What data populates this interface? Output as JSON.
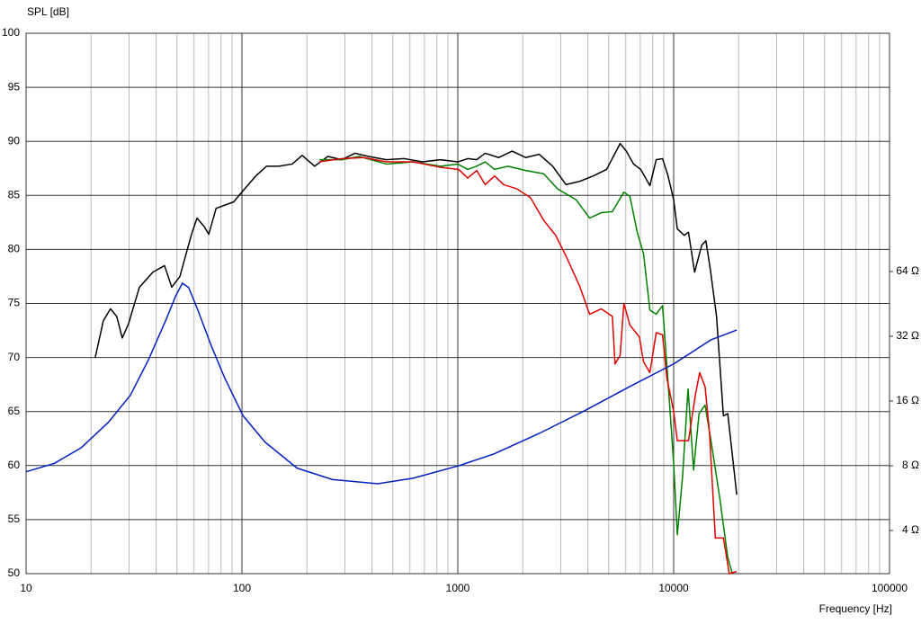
{
  "chart_data": {
    "type": "line",
    "y_label": "SPL [dB]",
    "x_label": "Frequency [Hz]",
    "xscale": "log",
    "y2scale": "log",
    "grid": true,
    "xlim": [
      10,
      100000
    ],
    "xticks": [
      10,
      100,
      1000,
      10000,
      100000
    ],
    "x_minor_ticks": [
      20,
      30,
      40,
      50,
      60,
      70,
      80,
      90,
      200,
      300,
      400,
      500,
      600,
      700,
      800,
      900,
      2000,
      3000,
      4000,
      5000,
      6000,
      7000,
      8000,
      9000,
      20000,
      30000,
      40000,
      50000,
      60000,
      70000,
      80000,
      90000
    ],
    "ylim": [
      50,
      100
    ],
    "yticks": [
      50,
      55,
      60,
      65,
      70,
      75,
      80,
      85,
      90,
      95,
      100
    ],
    "y2lim": [
      2.52,
      820
    ],
    "y2ticks": [
      {
        "value": 4,
        "label": "4 Ω"
      },
      {
        "value": 8,
        "label": "8 Ω"
      },
      {
        "value": 16,
        "label": "16 Ω"
      },
      {
        "value": 32,
        "label": "32 Ω"
      },
      {
        "value": 64,
        "label": "64 Ω"
      }
    ],
    "series": [
      {
        "color": "#000000",
        "x": [
          20.9,
          22.8,
          24.6,
          26.3,
          27.9,
          29.8,
          33.5,
          38.7,
          43.8,
          47.3,
          51.6,
          54.1,
          58.4,
          61.9,
          66.9,
          70.2,
          75.9,
          80.9,
          91.6,
          100.9,
          116,
          130,
          148,
          171,
          190,
          217,
          250,
          290,
          334,
          386,
          467,
          565,
          686,
          831,
          1000,
          1111,
          1223,
          1339,
          1547,
          1786,
          2063,
          2380,
          2750,
          3170,
          3670,
          4240,
          4890,
          5650,
          6030,
          6520,
          7040,
          7760,
          8300,
          8880,
          9390,
          10000,
          10400,
          11200,
          11710,
          12500,
          13500,
          14100,
          14800,
          15800,
          17000,
          17810,
          19600
        ],
        "values": [
          70.0,
          73.4,
          74.5,
          73.8,
          71.8,
          73.1,
          76.5,
          77.9,
          78.5,
          76.5,
          77.5,
          79.0,
          81.4,
          82.9,
          82.1,
          81.4,
          83.8,
          84.0,
          84.4,
          85.4,
          86.8,
          87.7,
          87.7,
          87.9,
          88.7,
          87.7,
          88.6,
          88.3,
          88.9,
          88.6,
          88.3,
          88.4,
          88.1,
          88.3,
          88.1,
          88.4,
          88.3,
          88.9,
          88.5,
          89.1,
          88.5,
          88.8,
          87.7,
          86.0,
          86.3,
          86.8,
          87.4,
          89.8,
          89.1,
          87.9,
          87.4,
          85.9,
          88.3,
          88.4,
          86.9,
          84.6,
          81.9,
          81.3,
          81.6,
          77.9,
          80.4,
          80.8,
          78.1,
          73.8,
          64.6,
          64.8,
          57.3
        ]
      },
      {
        "color": "#008000",
        "x": [
          228,
          290,
          350,
          467,
          620,
          831,
          1000,
          1111,
          1223,
          1339,
          1480,
          1710,
          2063,
          2500,
          2900,
          3530,
          4080,
          4620,
          5200,
          5880,
          6270,
          6780,
          7250,
          7760,
          8300,
          8880,
          9390,
          10000,
          10400,
          11000,
          11660,
          12370,
          13110,
          13980,
          14890,
          16380,
          17810,
          18700
        ],
        "values": [
          88.3,
          88.3,
          88.6,
          87.9,
          88.1,
          87.7,
          87.9,
          87.4,
          87.7,
          88.1,
          87.4,
          87.7,
          87.3,
          87.0,
          85.6,
          84.6,
          82.9,
          83.4,
          83.5,
          85.3,
          84.9,
          81.6,
          79.6,
          74.4,
          74.0,
          74.8,
          68.1,
          60.2,
          53.6,
          59.0,
          67.1,
          59.6,
          64.8,
          65.6,
          62.3,
          56.9,
          51.5,
          50.0
        ]
      },
      {
        "color": "#e00000",
        "x": [
          228,
          290,
          367,
          467,
          620,
          831,
          1010,
          1111,
          1223,
          1339,
          1480,
          1630,
          1880,
          2170,
          2500,
          2840,
          3170,
          3670,
          4080,
          4620,
          5200,
          5350,
          5650,
          5880,
          6270,
          6940,
          7250,
          7760,
          8300,
          8880,
          9300,
          10000,
          10400,
          11710,
          12600,
          13200,
          13980,
          14650,
          15600,
          17000,
          18100,
          19600
        ],
        "values": [
          88.1,
          88.4,
          88.5,
          88.1,
          88.1,
          87.6,
          87.4,
          86.6,
          87.3,
          86.0,
          86.8,
          86.0,
          85.6,
          84.8,
          82.7,
          81.3,
          79.4,
          76.6,
          74.0,
          74.5,
          73.8,
          69.4,
          70.2,
          75.0,
          73.0,
          71.9,
          69.6,
          68.6,
          72.3,
          72.1,
          68.1,
          65.0,
          62.3,
          62.3,
          66.5,
          68.6,
          67.3,
          63.1,
          53.3,
          53.3,
          50.0,
          50.2
        ]
      },
      {
        "color": "#0020c0",
        "axis": "y2",
        "x": [
          10,
          13.5,
          18,
          24,
          30.4,
          36.9,
          44.6,
          49.2,
          53,
          56.7,
          62.5,
          72.2,
          83,
          101,
          128,
          180,
          263,
          425,
          620,
          1010,
          1480,
          2380,
          3860,
          6270,
          10000,
          14890,
          19600
        ],
        "values": [
          7.5,
          8.2,
          9.7,
          12.7,
          17.0,
          24.9,
          38.4,
          49,
          56.5,
          53.8,
          42.3,
          28.8,
          20.6,
          13.7,
          10.3,
          7.8,
          6.9,
          6.6,
          7.0,
          8.0,
          9.1,
          11.3,
          14.4,
          18.7,
          23.8,
          30.8,
          34.2
        ]
      }
    ]
  }
}
